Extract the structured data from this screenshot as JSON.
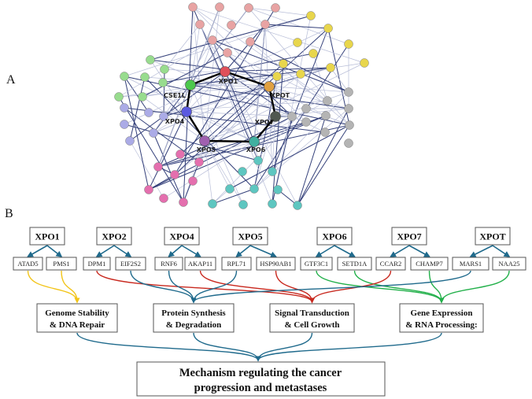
{
  "panel_a": {
    "label": "A",
    "central_nodes": [
      "XPO1",
      "CSE1L",
      "XPO4",
      "XPO5",
      "XPO6",
      "XPO7",
      "XPOT"
    ],
    "cluster_colors": {
      "salmon": "#e8a3a3",
      "yellow": "#e8d64c",
      "green": "#98dc8e",
      "lavender": "#ababe6",
      "grey": "#b4b4b4",
      "magenta": "#e46fae",
      "cyan": "#5ec6c0",
      "xpo1": "#e0505a",
      "cse1l": "#4cc84c",
      "xpo4": "#5a5ae0",
      "xpo5": "#a060b0",
      "xpo6": "#40b0a0",
      "xpo7": "#505850",
      "xpot": "#e0a040"
    }
  },
  "panel_b": {
    "label": "B",
    "exportins": [
      "XPO1",
      "XPO2",
      "XPO4",
      "XPO5",
      "XPO6",
      "XPO7",
      "XPOT"
    ],
    "genes": [
      "ATAD5",
      "PMS1",
      "DPM1",
      "EIF2S2",
      "RNF6",
      "AKAP11",
      "RPL71",
      "HSP90AB1",
      "GTF3C1",
      "SETD1A",
      "CCAR2",
      "CHAMP7",
      "MARS1",
      "NAA25"
    ],
    "categories": [
      {
        "line1": "Genome Stability",
        "line2": "& DNA Repair",
        "color": "#f2c418"
      },
      {
        "line1": "Protein Synthesis",
        "line2": "& Degradation",
        "color": "#1f6a8c"
      },
      {
        "line1": "Signal Transduction",
        "line2": "& Cell Growth",
        "color": "#c8281e"
      },
      {
        "line1": "Gene Expression",
        "line2": "& RNA Processing:",
        "color": "#22b04a"
      }
    ],
    "gene_to_category": {
      "ATAD5": 0,
      "PMS1": 0,
      "DPM1": 2,
      "EIF2S2": 1,
      "RNF6": 1,
      "AKAP11": 2,
      "RPL71": 1,
      "HSP90AB1": 2,
      "GTF3C1": 3,
      "SETD1A": 3,
      "CCAR2": 2,
      "CHAMP7": 3,
      "MARS1": 1,
      "NAA25": 3
    },
    "arrow_color": "#1f6a8c",
    "final": {
      "line1": "Mechanism regulating the cancer",
      "line2": "progression and metastases"
    }
  }
}
